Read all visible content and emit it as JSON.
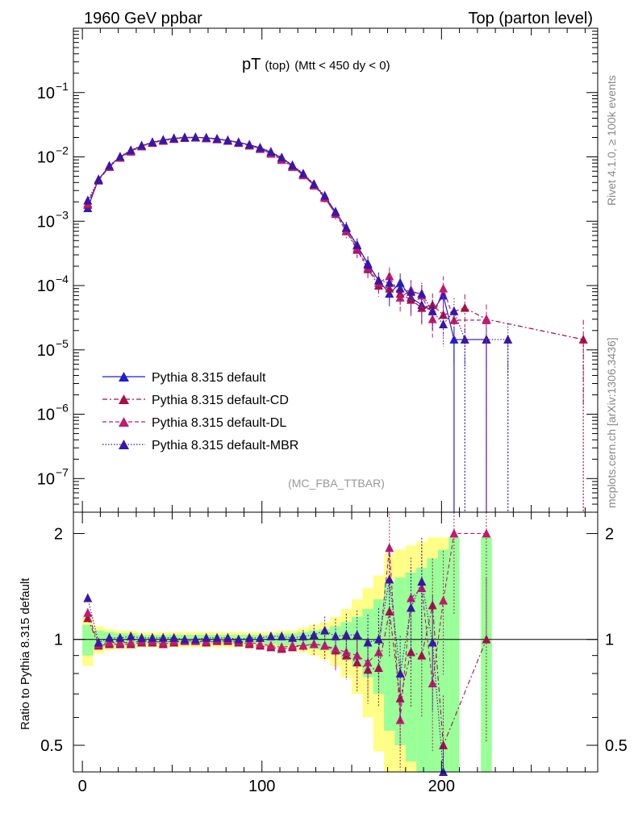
{
  "header": {
    "beam": "1960 GeV ppbar",
    "process": "Top (parton level)"
  },
  "side_labels": {
    "rivet": "Rivet 4.1.0, ≥ 100k events",
    "mcplots": "mcplots.cern.ch [arXiv:1306.3436]"
  },
  "colors": {
    "default": "#1f1fcc",
    "cd": "#a80f4a",
    "dl": "#c21a6e",
    "mbr": "#3a16a6",
    "band_inner": "#99ff99",
    "band_outer": "#ffff88"
  },
  "chart_data": [
    {
      "type": "line",
      "panel": "main",
      "title": "pT",
      "title_sub": "(top)",
      "title_cut": "(Mtt < 450 dy < 0)",
      "watermark": "(MC_FBA_TTBAR)",
      "xlim": [
        -5,
        287
      ],
      "ylim": [
        3e-08,
        1
      ],
      "yscale": "log",
      "yticks": [
        {
          "value": 1e-07,
          "base": "10",
          "exp": "−7"
        },
        {
          "value": 1e-06,
          "base": "10",
          "exp": "−6"
        },
        {
          "value": 1e-05,
          "base": "10",
          "exp": "−5"
        },
        {
          "value": 0.0001,
          "base": "10",
          "exp": "−4"
        },
        {
          "value": 0.001,
          "base": "10",
          "exp": "−3"
        },
        {
          "value": 0.01,
          "base": "10",
          "exp": "−2"
        },
        {
          "value": 0.1,
          "base": "10",
          "exp": "−1"
        }
      ],
      "legend": {
        "position": "lower-left",
        "entries": [
          {
            "label": "Pythia 8.315 default",
            "series": "default"
          },
          {
            "label": "Pythia 8.315 default-CD",
            "series": "cd"
          },
          {
            "label": "Pythia 8.315 default-DL",
            "series": "dl"
          },
          {
            "label": "Pythia 8.315 default-MBR",
            "series": "mbr"
          }
        ]
      },
      "series": [
        {
          "name": "Pythia 8.315 default",
          "key": "default",
          "dash": "solid",
          "x": [
            3,
            9,
            15,
            21,
            27,
            33,
            39,
            45,
            51,
            57,
            63,
            69,
            75,
            81,
            87,
            93,
            99,
            105,
            111,
            117,
            123,
            129,
            135,
            141,
            147,
            153,
            159,
            165,
            171,
            177,
            183,
            189,
            195,
            201,
            207,
            225
          ],
          "y": [
            0.0016,
            0.0045,
            0.0072,
            0.01,
            0.0125,
            0.0148,
            0.0168,
            0.0183,
            0.0194,
            0.02,
            0.0201,
            0.0198,
            0.019,
            0.018,
            0.0168,
            0.0154,
            0.0138,
            0.0118,
            0.0096,
            0.0074,
            0.0054,
            0.0037,
            0.0024,
            0.0014,
            0.00078,
            0.00042,
            0.00022,
            0.00012,
            7.5e-05,
            0.00011,
            6.5e-05,
            5e-05,
            4e-05,
            7e-05,
            1.45e-05,
            1.45e-05
          ]
        },
        {
          "name": "Pythia 8.315 default-CD",
          "key": "cd",
          "dash": "dashdot",
          "x": [
            3,
            9,
            15,
            21,
            27,
            33,
            39,
            45,
            51,
            57,
            63,
            69,
            75,
            81,
            87,
            93,
            99,
            105,
            111,
            117,
            123,
            129,
            135,
            141,
            147,
            153,
            159,
            165,
            171,
            177,
            183,
            189,
            195,
            201,
            213,
            225,
            279
          ],
          "y": [
            0.0018,
            0.0043,
            0.007,
            0.0097,
            0.0121,
            0.0146,
            0.0165,
            0.0178,
            0.019,
            0.0197,
            0.02,
            0.0195,
            0.0188,
            0.0178,
            0.0165,
            0.015,
            0.0133,
            0.0112,
            0.009,
            0.007,
            0.0052,
            0.0036,
            0.0023,
            0.0013,
            0.0007,
            0.00036,
            0.00018,
            0.0001,
            9e-05,
            7.5e-05,
            6e-05,
            4.5e-05,
            5e-05,
            3.5e-05,
            4.5e-05,
            3e-05,
            1.45e-05
          ]
        },
        {
          "name": "Pythia 8.315 default-DL",
          "key": "dl",
          "dash": "dashed",
          "x": [
            3,
            9,
            15,
            21,
            27,
            33,
            39,
            45,
            51,
            57,
            63,
            69,
            75,
            81,
            87,
            93,
            99,
            105,
            111,
            117,
            123,
            129,
            135,
            141,
            147,
            153,
            159,
            165,
            171,
            177,
            183,
            189,
            195,
            201,
            207,
            225
          ],
          "y": [
            0.0019,
            0.0044,
            0.0071,
            0.0098,
            0.0123,
            0.0147,
            0.0166,
            0.018,
            0.0192,
            0.0198,
            0.02,
            0.0196,
            0.0189,
            0.0179,
            0.0166,
            0.0151,
            0.0134,
            0.0113,
            0.0091,
            0.0071,
            0.0052,
            0.0036,
            0.0023,
            0.0013,
            0.00072,
            0.00038,
            0.00019,
            0.00011,
            0.00014,
            6.5e-05,
            8.5e-05,
            7e-05,
            3e-05,
            9e-05,
            2.9e-05,
            2.9e-05
          ]
        },
        {
          "name": "Pythia 8.315 default-MBR",
          "key": "mbr",
          "dash": "dotted",
          "x": [
            3,
            9,
            15,
            21,
            27,
            33,
            39,
            45,
            51,
            57,
            63,
            69,
            75,
            81,
            87,
            93,
            99,
            105,
            111,
            117,
            123,
            129,
            135,
            141,
            147,
            153,
            159,
            165,
            171,
            177,
            183,
            189,
            195,
            201,
            207,
            213,
            225,
            237
          ],
          "y": [
            0.0021,
            0.0044,
            0.0073,
            0.0101,
            0.0127,
            0.015,
            0.017,
            0.0184,
            0.0195,
            0.0201,
            0.0202,
            0.0199,
            0.0192,
            0.0181,
            0.0169,
            0.0155,
            0.0139,
            0.012,
            0.0098,
            0.0074,
            0.0055,
            0.0038,
            0.0025,
            0.0014,
            0.0008,
            0.00043,
            0.00021,
            0.00012,
            0.00011,
            9e-05,
            8e-05,
            7.5e-05,
            4e-05,
            2.5e-05,
            4e-05,
            1.45e-05,
            1.45e-05,
            1.45e-05
          ]
        }
      ]
    },
    {
      "type": "line",
      "panel": "ratio",
      "ylabel": "Ratio to Pythia 8.315 default",
      "xlim": [
        -5,
        287
      ],
      "ylim": [
        0.42,
        2.3
      ],
      "yscale": "log",
      "yticks": [
        {
          "value": 0.5,
          "label": "0.5"
        },
        {
          "value": 1,
          "label": "1"
        },
        {
          "value": 2,
          "label": "2"
        }
      ],
      "xticks": [
        {
          "value": 0,
          "label": "0"
        },
        {
          "value": 100,
          "label": "100"
        },
        {
          "value": 200,
          "label": "200"
        }
      ],
      "band": {
        "x": [
          3,
          9,
          15,
          21,
          27,
          33,
          39,
          45,
          51,
          57,
          63,
          69,
          75,
          81,
          87,
          93,
          99,
          105,
          111,
          117,
          123,
          129,
          135,
          141,
          147,
          153,
          159,
          165,
          171,
          177,
          183,
          189,
          195,
          201,
          207,
          225
        ],
        "inner": [
          0.1,
          0.06,
          0.05,
          0.04,
          0.04,
          0.03,
          0.03,
          0.03,
          0.03,
          0.03,
          0.03,
          0.03,
          0.03,
          0.03,
          0.03,
          0.03,
          0.03,
          0.03,
          0.04,
          0.04,
          0.05,
          0.06,
          0.07,
          0.09,
          0.12,
          0.16,
          0.22,
          0.3,
          0.45,
          0.5,
          0.55,
          0.6,
          0.7,
          0.8,
          0.95,
          0.95
        ],
        "outer": [
          0.16,
          0.09,
          0.07,
          0.06,
          0.06,
          0.05,
          0.05,
          0.05,
          0.05,
          0.05,
          0.05,
          0.05,
          0.05,
          0.05,
          0.05,
          0.05,
          0.05,
          0.05,
          0.06,
          0.06,
          0.08,
          0.1,
          0.12,
          0.16,
          0.22,
          0.3,
          0.4,
          0.52,
          0.75,
          0.8,
          0.85,
          0.9,
          0.95,
          0.95,
          0.95,
          0.95
        ]
      },
      "series": [
        {
          "name": "Pythia 8.315 default-CD",
          "key": "cd",
          "dash": "dashdot",
          "x": [
            3,
            9,
            15,
            21,
            27,
            33,
            39,
            45,
            51,
            57,
            63,
            69,
            75,
            81,
            87,
            93,
            99,
            105,
            111,
            117,
            123,
            129,
            135,
            141,
            147,
            153,
            159,
            165,
            171,
            177,
            183,
            189,
            195,
            201,
            225
          ],
          "y": [
            1.15,
            0.96,
            0.97,
            0.97,
            0.97,
            0.98,
            0.98,
            0.97,
            0.98,
            0.99,
            0.99,
            0.98,
            0.99,
            0.99,
            0.98,
            0.97,
            0.96,
            0.95,
            0.94,
            0.95,
            0.96,
            0.97,
            0.96,
            0.93,
            0.9,
            0.86,
            0.82,
            0.83,
            1.2,
            0.68,
            0.92,
            0.9,
            1.25,
            0.5,
            1.0
          ]
        },
        {
          "name": "Pythia 8.315 default-DL",
          "key": "dl",
          "dash": "dashed",
          "x": [
            3,
            9,
            15,
            21,
            27,
            33,
            39,
            45,
            51,
            57,
            63,
            69,
            75,
            81,
            87,
            93,
            99,
            105,
            111,
            117,
            123,
            129,
            135,
            141,
            147,
            153,
            159,
            165,
            171,
            177,
            183,
            189,
            195,
            201,
            207,
            225
          ],
          "y": [
            1.19,
            0.97,
            0.98,
            0.98,
            0.98,
            0.99,
            0.99,
            0.98,
            0.99,
            0.99,
            0.99,
            0.99,
            1.0,
            1.0,
            0.99,
            0.98,
            0.97,
            0.96,
            0.95,
            0.96,
            0.96,
            0.97,
            0.96,
            0.94,
            0.92,
            0.9,
            0.86,
            0.92,
            1.82,
            0.59,
            1.31,
            1.4,
            0.75,
            1.29,
            2.0,
            2.0
          ]
        },
        {
          "name": "Pythia 8.315 default-MBR",
          "key": "mbr",
          "dash": "dotted",
          "x": [
            3,
            9,
            15,
            21,
            27,
            33,
            39,
            45,
            51,
            57,
            63,
            69,
            75,
            81,
            87,
            93,
            99,
            105,
            111,
            117,
            123,
            129,
            135,
            141,
            147,
            153,
            159,
            165,
            171,
            177,
            183,
            189,
            195,
            201
          ],
          "y": [
            1.31,
            0.98,
            1.01,
            1.01,
            1.02,
            1.01,
            1.01,
            1.01,
            1.01,
            1.0,
            1.0,
            1.01,
            1.01,
            1.01,
            1.0,
            1.01,
            1.01,
            1.02,
            1.02,
            1.01,
            1.02,
            1.03,
            1.06,
            1.02,
            1.03,
            1.03,
            0.98,
            1.0,
            1.48,
            0.8,
            1.23,
            1.46,
            0.98,
            0.36
          ]
        }
      ]
    }
  ]
}
